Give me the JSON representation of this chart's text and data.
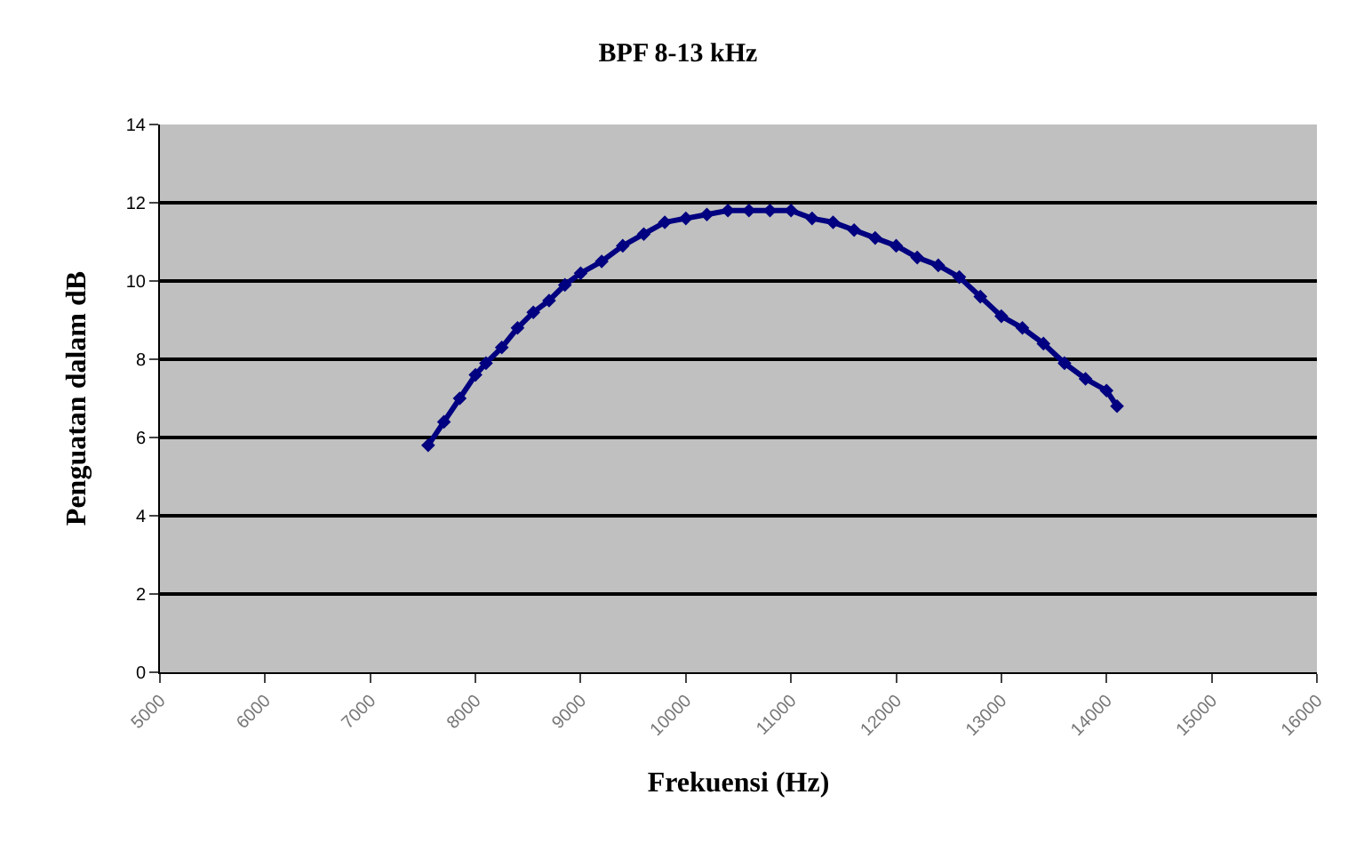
{
  "chart_data": {
    "type": "line",
    "title": "BPF 8-13 kHz",
    "xlabel": "Frekuensi (Hz)",
    "ylabel": "Penguatan dalam dB",
    "x": [
      7550,
      7700,
      7850,
      8000,
      8100,
      8250,
      8400,
      8550,
      8700,
      8850,
      9000,
      9200,
      9400,
      9600,
      9800,
      10000,
      10200,
      10400,
      10600,
      10800,
      11000,
      11200,
      11400,
      11600,
      11800,
      12000,
      12200,
      12400,
      12600,
      12800,
      13000,
      13200,
      13400,
      13600,
      13800,
      14000,
      14100
    ],
    "series": [
      {
        "color": "#000080",
        "values": [
          5.8,
          6.4,
          7.0,
          7.6,
          7.9,
          8.3,
          8.8,
          9.2,
          9.5,
          9.9,
          10.2,
          10.5,
          10.9,
          11.2,
          11.5,
          11.6,
          11.7,
          11.8,
          11.8,
          11.8,
          11.8,
          11.6,
          11.5,
          11.3,
          11.1,
          10.9,
          10.6,
          10.4,
          10.1,
          9.6,
          9.1,
          8.8,
          8.4,
          7.9,
          7.5,
          7.2,
          6.8
        ]
      }
    ],
    "xlim": [
      5000,
      16000
    ],
    "xticks": [
      5000,
      6000,
      7000,
      8000,
      9000,
      10000,
      11000,
      12000,
      13000,
      14000,
      15000,
      16000
    ],
    "ylim": [
      0,
      14
    ],
    "yticks": [
      0,
      2,
      4,
      6,
      8,
      10,
      12,
      14
    ],
    "grid": "y",
    "marker": "diamond"
  }
}
